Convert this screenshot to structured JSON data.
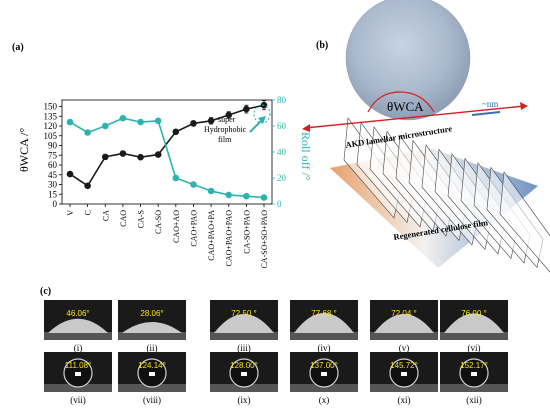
{
  "panels": {
    "a": "(a)",
    "b": "(b)",
    "c": "(c)"
  },
  "chart_data": {
    "type": "line",
    "categories": [
      "V",
      "C",
      "CA",
      "CAO",
      "CA-S",
      "CA-SO",
      "CAO+AO",
      "CAO+PAO",
      "CAO+PAO+PA",
      "CAO+PAO+PAO",
      "CA-SO+PAO",
      "CA-SO+SO+PAO"
    ],
    "ylabel_left": "θWCA /°",
    "ylabel_right": "Roll off /°",
    "ylim_left": [
      0,
      160
    ],
    "yticks_left": [
      "0",
      "15",
      "30",
      "45",
      "60",
      "75",
      "90",
      "105",
      "120",
      "135",
      "150"
    ],
    "ylim_right": [
      0,
      80
    ],
    "yticks_right": [
      "0",
      "20",
      "40",
      "60",
      "80"
    ],
    "annotation": "super Hydrophobic film",
    "series": [
      {
        "values": [
          46,
          28,
          72.5,
          77.7,
          72,
          76,
          111,
          124,
          128,
          137,
          146,
          152
        ],
        "color": "#1a1a1a",
        "axis": "left",
        "errors": [
          0,
          0,
          0,
          3,
          0,
          0,
          3,
          4,
          5,
          5,
          6,
          7
        ]
      },
      {
        "values": [
          63,
          55,
          60,
          66,
          63,
          64,
          20,
          15,
          10,
          7,
          6,
          5
        ],
        "color": "#2bb3b0",
        "axis": "right",
        "errors": [
          0,
          0,
          0,
          0,
          0,
          0,
          0,
          0,
          0,
          0,
          0,
          0
        ]
      }
    ]
  },
  "schematic": {
    "theta_label": "θWCA",
    "nm_label": "~nm",
    "lamellar_label": "AKD lamellar microstructure",
    "film_label": "Regenerated cellulose film"
  },
  "droplets": [
    {
      "angle": "46.06°",
      "caption": "(i)"
    },
    {
      "angle": "28.06°",
      "caption": "(ii)"
    },
    {
      "angle": "72.50 °",
      "caption": "(iii)"
    },
    {
      "angle": "77.68 °",
      "caption": "(iv)"
    },
    {
      "angle": "72.04 °",
      "caption": "(v)"
    },
    {
      "angle": "76.00 °",
      "caption": "(vi)"
    },
    {
      "angle": "111.08°",
      "caption": "(vii)"
    },
    {
      "angle": "124.14°",
      "caption": "(viii)"
    },
    {
      "angle": "128.00°",
      "caption": "(ix)"
    },
    {
      "angle": "137.00°",
      "caption": "(x)"
    },
    {
      "angle": "145.72°",
      "caption": "(xi)"
    },
    {
      "angle": "152.17°",
      "caption": "(xii)"
    }
  ]
}
